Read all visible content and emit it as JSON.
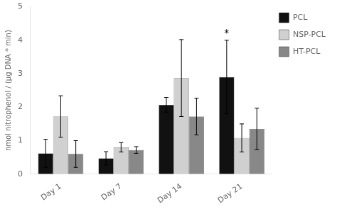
{
  "chart_data": {
    "type": "bar",
    "categories": [
      "Day 1",
      "Day 7",
      "Day 14",
      "Day 21"
    ],
    "series": [
      {
        "name": "PCL",
        "color": "#111111",
        "values": [
          0.62,
          0.47,
          2.07,
          2.9
        ],
        "errors": [
          0.42,
          0.2,
          0.22,
          1.1
        ]
      },
      {
        "name": "NSP-PCL",
        "color": "#d0d0d0",
        "values": [
          1.72,
          0.8,
          2.87,
          1.08
        ],
        "errors": [
          0.62,
          0.14,
          1.15,
          0.42
        ]
      },
      {
        "name": "HT-PCL",
        "color": "#888888",
        "values": [
          0.6,
          0.72,
          1.72,
          1.35
        ],
        "errors": [
          0.4,
          0.1,
          0.55,
          0.62
        ]
      }
    ],
    "ylabel": "nmol nitrophenol / (μg DNA * min)",
    "ylim": [
      0,
      5
    ],
    "yticks": [
      0,
      1,
      2,
      3,
      4,
      5
    ],
    "grid": false,
    "legend": "right",
    "annotations": [
      {
        "text": "*",
        "category": "Day 21",
        "series": "PCL"
      }
    ]
  }
}
